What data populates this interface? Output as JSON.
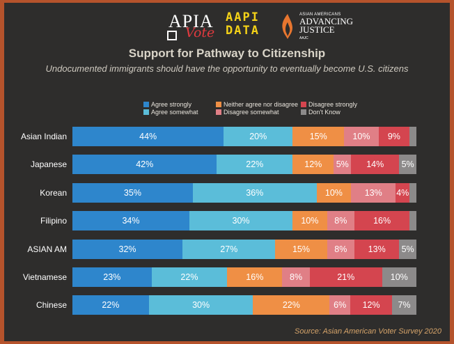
{
  "logos": {
    "apia": {
      "line1": "APIA",
      "line2": "Vote"
    },
    "aapi": {
      "line1": "AAPI",
      "line2": "DATA"
    },
    "aajc": {
      "small": "ASIAN AMERICANS",
      "line1": "ADVANCING",
      "line2": "JUSTICE",
      "abbr": "AAJC"
    }
  },
  "chart_data": {
    "type": "bar",
    "orientation": "horizontal",
    "stacked": true,
    "title": "Support for Pathway to Citizenship",
    "subtitle": "Undocumented immigrants should have the opportunity to eventually become U.S. citizens",
    "source": "Source: Asian American Voter Survey 2020",
    "legend_position": "top",
    "categories": [
      "Asian Indian",
      "Japanese",
      "Korean",
      "Filipino",
      "ASIAN AM",
      "Vietnamese",
      "Chinese"
    ],
    "series": [
      {
        "name": "Agree strongly",
        "color": "#2e86cc",
        "values": [
          44,
          42,
          35,
          34,
          32,
          23,
          22
        ]
      },
      {
        "name": "Agree somewhat",
        "color": "#5bbdd9",
        "values": [
          20,
          22,
          36,
          30,
          27,
          22,
          30
        ]
      },
      {
        "name": "Neither agree nor disagree",
        "color": "#ef8f45",
        "values": [
          15,
          12,
          10,
          10,
          15,
          16,
          22
        ]
      },
      {
        "name": "Disagree somewhat",
        "color": "#e07f86",
        "values": [
          10,
          5,
          13,
          8,
          8,
          8,
          6
        ]
      },
      {
        "name": "Disagree strongly",
        "color": "#d4454f",
        "values": [
          9,
          14,
          4,
          16,
          13,
          21,
          12
        ]
      },
      {
        "name": "Don't Know",
        "color": "#8c8a8a",
        "values": [
          2,
          5,
          2,
          2,
          5,
          10,
          7
        ]
      }
    ],
    "data_labels": [
      [
        "44%",
        "20%",
        "15%",
        "10%",
        "9%",
        ""
      ],
      [
        "42%",
        "22%",
        "12%",
        "5%",
        "14%",
        "5%"
      ],
      [
        "35%",
        "36%",
        "10%",
        "13%",
        "4%",
        ""
      ],
      [
        "34%",
        "30%",
        "10%",
        "8%",
        "16%",
        ""
      ],
      [
        "32%",
        "27%",
        "15%",
        "8%",
        "13%",
        "5%"
      ],
      [
        "23%",
        "22%",
        "16%",
        "8%",
        "21%",
        "10%"
      ],
      [
        "22%",
        "30%",
        "22%",
        "6%",
        "12%",
        "7%"
      ]
    ]
  }
}
